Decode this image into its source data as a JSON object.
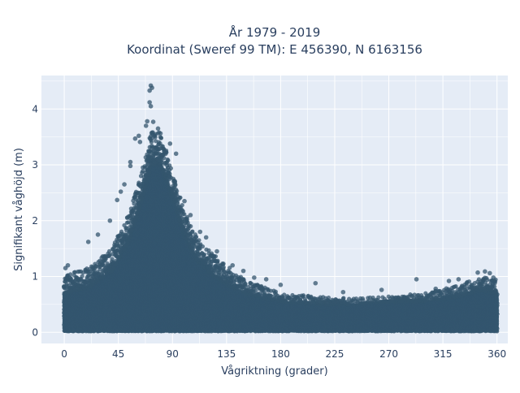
{
  "chart_data": {
    "type": "scatter",
    "title_lines": [
      "År 1979 - 2019",
      "Koordinat (Sweref 99 TM): E 456390, N 6163156"
    ],
    "xlabel": "Vågriktning (grader)",
    "ylabel": "Signifikant våghöjd (m)",
    "xlim": [
      -19,
      369
    ],
    "ylim": [
      -0.2,
      4.6
    ],
    "xticks": [
      0,
      45,
      90,
      135,
      180,
      225,
      270,
      315,
      360
    ],
    "yticks": [
      0,
      1,
      2,
      3,
      4
    ],
    "grid": true,
    "legend": "none",
    "colors": {
      "marker": "#34566e",
      "plot_bg": "#e5ecf6",
      "grid": "#ffffff"
    },
    "envelope": {
      "x": [
        0,
        20,
        40,
        55,
        65,
        72,
        80,
        90,
        100,
        110,
        125,
        135,
        150,
        180,
        210,
        240,
        270,
        300,
        330,
        345,
        360
      ],
      "upper": [
        1.05,
        1.15,
        1.5,
        2.2,
        2.9,
        3.6,
        3.6,
        2.9,
        2.2,
        1.7,
        1.4,
        1.2,
        0.95,
        0.7,
        0.65,
        0.6,
        0.65,
        0.7,
        0.85,
        1.0,
        0.95
      ],
      "dense_top": [
        0.7,
        0.8,
        1.1,
        1.7,
        2.4,
        3.0,
        3.0,
        2.4,
        1.7,
        1.3,
        1.0,
        0.85,
        0.7,
        0.55,
        0.5,
        0.5,
        0.55,
        0.55,
        0.65,
        0.75,
        0.7
      ]
    },
    "peak_points": [
      {
        "x": 72,
        "y": 4.42
      },
      {
        "x": 71,
        "y": 4.33
      },
      {
        "x": 73,
        "y": 4.38
      },
      {
        "x": 71,
        "y": 4.12
      },
      {
        "x": 72,
        "y": 4.05
      },
      {
        "x": 69,
        "y": 3.78
      },
      {
        "x": 74,
        "y": 3.77
      },
      {
        "x": 68,
        "y": 3.7
      },
      {
        "x": 78,
        "y": 3.65
      },
      {
        "x": 62,
        "y": 3.52
      },
      {
        "x": 59,
        "y": 3.47
      },
      {
        "x": 63,
        "y": 3.41
      },
      {
        "x": 55,
        "y": 3.05
      },
      {
        "x": 55,
        "y": 2.98
      },
      {
        "x": 88,
        "y": 3.38
      },
      {
        "x": 93,
        "y": 3.2
      },
      {
        "x": 100,
        "y": 2.35
      },
      {
        "x": 105,
        "y": 2.1
      },
      {
        "x": 50,
        "y": 2.65
      },
      {
        "x": 47,
        "y": 2.52
      },
      {
        "x": 44,
        "y": 2.37
      },
      {
        "x": 38,
        "y": 2.0
      },
      {
        "x": 28,
        "y": 1.75
      },
      {
        "x": 20,
        "y": 1.62
      },
      {
        "x": 3,
        "y": 1.2
      },
      {
        "x": 1,
        "y": 1.15
      },
      {
        "x": 113,
        "y": 1.8
      },
      {
        "x": 118,
        "y": 1.7
      },
      {
        "x": 127,
        "y": 1.45
      },
      {
        "x": 140,
        "y": 1.2
      },
      {
        "x": 149,
        "y": 1.1
      },
      {
        "x": 158,
        "y": 0.98
      },
      {
        "x": 168,
        "y": 0.95
      },
      {
        "x": 180,
        "y": 0.85
      },
      {
        "x": 209,
        "y": 0.88
      },
      {
        "x": 232,
        "y": 0.72
      },
      {
        "x": 264,
        "y": 0.76
      },
      {
        "x": 293,
        "y": 0.95
      },
      {
        "x": 309,
        "y": 0.78
      },
      {
        "x": 320,
        "y": 0.92
      },
      {
        "x": 328,
        "y": 0.95
      },
      {
        "x": 344,
        "y": 1.07
      },
      {
        "x": 350,
        "y": 1.09
      },
      {
        "x": 354,
        "y": 1.06
      },
      {
        "x": 357,
        "y": 0.98
      }
    ]
  }
}
